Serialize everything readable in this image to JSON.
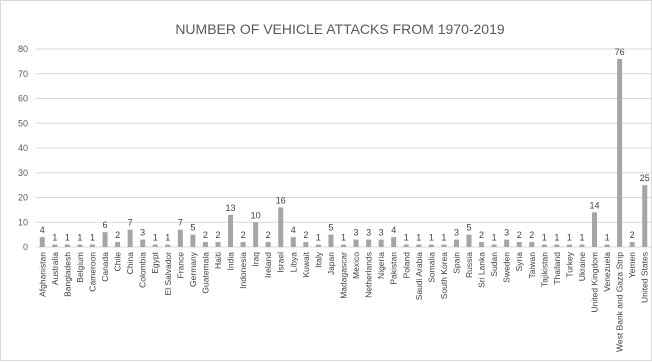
{
  "colors": {
    "bar": "#a5a5a5",
    "grid": "#d9d9d9",
    "text": "#595959"
  },
  "chart_data": {
    "type": "bar",
    "title": "NUMBER OF VEHICLE ATTACKS FROM 1970-2019",
    "xlabel": "",
    "ylabel": "",
    "ylim": [
      0,
      80
    ],
    "yticks": [
      0,
      10,
      20,
      30,
      40,
      50,
      60,
      70,
      80
    ],
    "grid": true,
    "legend": "none",
    "data_labels": true,
    "categories": [
      "Afghanistan",
      "Australia",
      "Bangladesh",
      "Belgium",
      "Cameroon",
      "Canada",
      "Chile",
      "China",
      "Colombia",
      "Egypt",
      "El Salvador",
      "France",
      "Germany",
      "Guatemala",
      "Haiti",
      "India",
      "Indonesia",
      "Iraq",
      "Ireland",
      "Israel",
      "Libya",
      "Kuwait",
      "Italy",
      "Japan",
      "Madagascar",
      "Mexico",
      "Netherlands",
      "Nigeria",
      "Pakistan",
      "Poland",
      "Saudi Arabia",
      "Somalia",
      "South Korea",
      "Spain",
      "Russia",
      "Sri Lanka",
      "Sudan",
      "Sweden",
      "Syria",
      "Taiwan",
      "Tajikistan",
      "Thailand",
      "Turkey",
      "Ukraine",
      "United Kingdom",
      "Venezuela",
      "West Bank and Gaza Strip",
      "Yemen",
      "United States"
    ],
    "values": [
      4,
      1,
      1,
      1,
      1,
      6,
      2,
      7,
      3,
      1,
      1,
      7,
      5,
      2,
      2,
      13,
      2,
      10,
      2,
      16,
      4,
      2,
      1,
      5,
      1,
      3,
      3,
      3,
      4,
      1,
      1,
      1,
      1,
      3,
      5,
      2,
      1,
      3,
      2,
      2,
      1,
      1,
      1,
      1,
      14,
      1,
      76,
      2,
      25
    ]
  }
}
